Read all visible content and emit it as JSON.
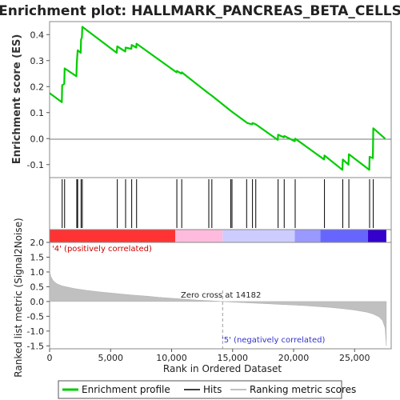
{
  "chart_data": [
    {
      "type": "line",
      "title": "Enrichment plot: HALLMARK_PANCREAS_BETA_CELLS",
      "ylabel": "Enrichment score (ES)",
      "xlim": [
        0,
        28000
      ],
      "ylim": [
        -0.15,
        0.45
      ],
      "yticks": [
        -0.1,
        0.0,
        0.1,
        0.2,
        0.3,
        0.4
      ],
      "ytick_labels": [
        "-0.1",
        "0.0",
        "0.1",
        "0.2",
        "0.3",
        "0.4"
      ],
      "grid": false,
      "series": [
        {
          "name": "Enrichment profile",
          "color": "#00cc00",
          "points": [
            [
              0,
              0.175
            ],
            [
              1000,
              0.14
            ],
            [
              1030,
              0.205
            ],
            [
              1200,
              0.21
            ],
            [
              1230,
              0.27
            ],
            [
              2200,
              0.24
            ],
            [
              2230,
              0.29
            ],
            [
              2300,
              0.34
            ],
            [
              2550,
              0.33
            ],
            [
              2580,
              0.38
            ],
            [
              2650,
              0.39
            ],
            [
              2680,
              0.43
            ],
            [
              5500,
              0.33
            ],
            [
              5550,
              0.355
            ],
            [
              6200,
              0.335
            ],
            [
              6230,
              0.35
            ],
            [
              6700,
              0.345
            ],
            [
              6730,
              0.36
            ],
            [
              7100,
              0.35
            ],
            [
              7130,
              0.365
            ],
            [
              10400,
              0.255
            ],
            [
              10430,
              0.26
            ],
            [
              10800,
              0.25
            ],
            [
              10830,
              0.255
            ],
            [
              13000,
              0.175
            ],
            [
              13300,
              0.165
            ],
            [
              14900,
              0.105
            ],
            [
              16200,
              0.06
            ],
            [
              16600,
              0.055
            ],
            [
              16630,
              0.06
            ],
            [
              16900,
              0.055
            ],
            [
              18700,
              -0.005
            ],
            [
              18730,
              0.015
            ],
            [
              19200,
              0.005
            ],
            [
              19230,
              0.01
            ],
            [
              20100,
              -0.01
            ],
            [
              20130,
              0.0
            ],
            [
              22500,
              -0.08
            ],
            [
              22530,
              -0.065
            ],
            [
              24000,
              -0.12
            ],
            [
              24030,
              -0.08
            ],
            [
              24500,
              -0.1
            ],
            [
              24530,
              -0.06
            ],
            [
              26200,
              -0.12
            ],
            [
              26230,
              -0.07
            ],
            [
              26500,
              -0.075
            ],
            [
              26530,
              0.04
            ],
            [
              27500,
              0.0
            ]
          ]
        }
      ]
    },
    {
      "type": "scatter",
      "name": "Hits",
      "hit_positions": [
        1030,
        1230,
        2230,
        2300,
        2580,
        2680,
        5550,
        6230,
        6730,
        7130,
        10430,
        10830,
        13050,
        13300,
        14850,
        14950,
        16150,
        16630,
        16900,
        18730,
        19230,
        20130,
        22530,
        24030,
        24530,
        26230,
        26530
      ]
    },
    {
      "type": "heatmap",
      "name": "Ranked list color bar",
      "segments": [
        {
          "start": 0,
          "end": 10300,
          "color": "#ff3333"
        },
        {
          "start": 10300,
          "end": 14182,
          "color": "#ffbbdd"
        },
        {
          "start": 14182,
          "end": 20100,
          "color": "#ccccff"
        },
        {
          "start": 20100,
          "end": 22200,
          "color": "#9999ff"
        },
        {
          "start": 22200,
          "end": 26100,
          "color": "#6666ff"
        },
        {
          "start": 26100,
          "end": 27600,
          "color": "#3300cc"
        }
      ]
    },
    {
      "type": "area",
      "ylabel": "Ranked list metric (Signal2Noise)",
      "xlabel": "Rank in Ordered Dataset",
      "xlim": [
        0,
        28000
      ],
      "ylim": [
        -1.6,
        2.0
      ],
      "xticks": [
        0,
        5000,
        10000,
        15000,
        20000,
        25000
      ],
      "xtick_labels": [
        "0",
        "5,000",
        "10,000",
        "15,000",
        "20,000",
        "25,000"
      ],
      "yticks": [
        -1.5,
        -1.0,
        -0.5,
        0.0,
        0.5,
        1.0,
        1.5,
        2.0
      ],
      "ytick_labels": [
        "-1.5",
        "-1.0",
        "-0.5",
        "0.0",
        "0.5",
        "1.0",
        "1.5",
        "2.0"
      ],
      "grid": false,
      "series": [
        {
          "name": "Ranking metric scores",
          "color": "#c0c0c0",
          "points": [
            [
              0,
              1.05
            ],
            [
              100,
              0.85
            ],
            [
              300,
              0.7
            ],
            [
              600,
              0.6
            ],
            [
              1000,
              0.53
            ],
            [
              2000,
              0.44
            ],
            [
              3000,
              0.38
            ],
            [
              4000,
              0.33
            ],
            [
              5000,
              0.29
            ],
            [
              6000,
              0.25
            ],
            [
              7000,
              0.21
            ],
            [
              8000,
              0.18
            ],
            [
              9000,
              0.14
            ],
            [
              10000,
              0.11
            ],
            [
              11000,
              0.08
            ],
            [
              12000,
              0.05
            ],
            [
              13000,
              0.03
            ],
            [
              14182,
              0.0
            ],
            [
              15000,
              -0.02
            ],
            [
              16000,
              -0.04
            ],
            [
              17000,
              -0.06
            ],
            [
              18000,
              -0.08
            ],
            [
              19000,
              -0.1
            ],
            [
              20000,
              -0.12
            ],
            [
              21000,
              -0.14
            ],
            [
              22000,
              -0.17
            ],
            [
              23000,
              -0.2
            ],
            [
              24000,
              -0.24
            ],
            [
              25000,
              -0.29
            ],
            [
              26000,
              -0.36
            ],
            [
              26500,
              -0.42
            ],
            [
              27000,
              -0.52
            ],
            [
              27300,
              -0.65
            ],
            [
              27500,
              -0.9
            ],
            [
              27600,
              -1.5
            ]
          ]
        }
      ],
      "annotations": {
        "positive": "'4' (positively correlated)",
        "zero_cross": "Zero cross at 14182",
        "negative": "'5' (negatively correlated)"
      },
      "zero_cross": 14182
    }
  ],
  "legend": {
    "items": [
      {
        "label": "Enrichment profile",
        "color": "#00cc00"
      },
      {
        "label": "Hits",
        "color": "#000000"
      },
      {
        "label": "Ranking metric scores",
        "color": "#c0c0c0"
      }
    ]
  }
}
